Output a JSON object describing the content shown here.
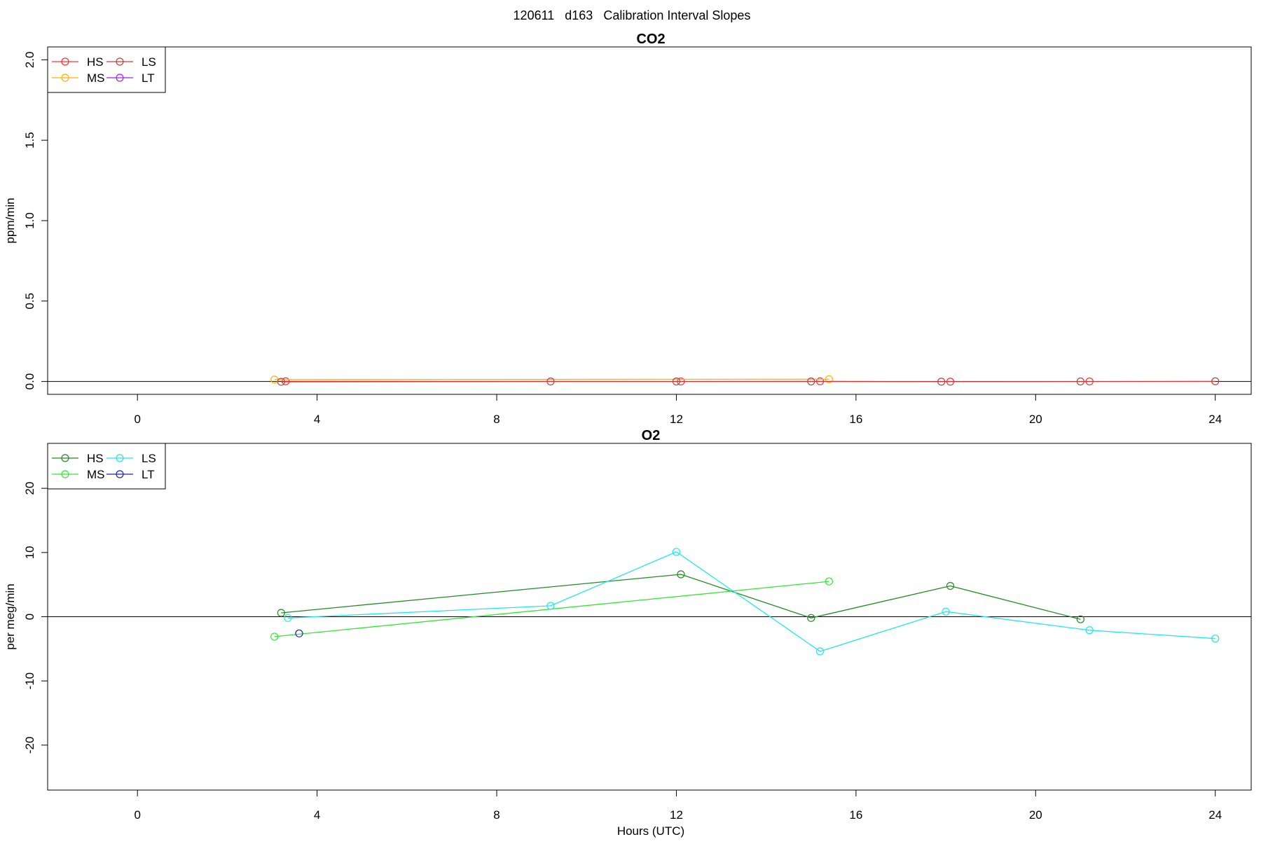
{
  "page_title": "120611   d163   Calibration Interval Slopes",
  "chart_data": [
    {
      "type": "line",
      "title": "CO2",
      "xlabel": "",
      "ylabel": "ppm/min",
      "xlim": [
        -2,
        24.8
      ],
      "ylim": [
        -0.08,
        2.08
      ],
      "x_ticks": [
        0,
        4,
        8,
        12,
        16,
        20,
        24
      ],
      "y_ticks": [
        0.0,
        0.5,
        1.0,
        1.5,
        2.0
      ],
      "x_tick_labels": [
        "0",
        "4",
        "8",
        "12",
        "16",
        "20",
        "24"
      ],
      "y_tick_labels": [
        "0.0",
        "0.5",
        "1.0",
        "1.5",
        "2.0"
      ],
      "zero_line": true,
      "grid": false,
      "legend_position": "top-left",
      "legend": [
        "HS",
        "MS",
        "LS",
        "LT"
      ],
      "series": [
        {
          "name": "HS",
          "color": "#ff3030",
          "x": [
            3.3,
            12.1,
            15.2,
            18.1,
            21.2
          ],
          "y": [
            0.001,
            0.0,
            0.001,
            -0.001,
            0.0
          ]
        },
        {
          "name": "MS",
          "color": "#ffb000",
          "x": [
            3.05,
            15.4
          ],
          "y": [
            0.012,
            0.014
          ]
        },
        {
          "name": "LS",
          "color": "#c04040",
          "x": [
            3.2,
            9.2,
            12.0,
            15.0,
            17.9,
            21.0,
            24.0
          ],
          "y": [
            -0.002,
            0.0,
            0.0,
            0.0,
            -0.001,
            0.0,
            0.001
          ]
        },
        {
          "name": "LT",
          "color": "#a020f0",
          "x": [],
          "y": []
        }
      ]
    },
    {
      "type": "line",
      "title": "O2",
      "xlabel": "Hours (UTC)",
      "ylabel": "per meg/min",
      "xlim": [
        -2,
        24.8
      ],
      "ylim": [
        -27,
        27
      ],
      "x_ticks": [
        0,
        4,
        8,
        12,
        16,
        20,
        24
      ],
      "y_ticks": [
        -20,
        -10,
        0,
        10,
        20
      ],
      "x_tick_labels": [
        "0",
        "4",
        "8",
        "12",
        "16",
        "20",
        "24"
      ],
      "y_tick_labels": [
        "-20",
        "-10",
        "0",
        "10",
        "20"
      ],
      "zero_line": true,
      "grid": false,
      "legend_position": "top-left",
      "legend": [
        "HS",
        "MS",
        "LS",
        "LT"
      ],
      "series": [
        {
          "name": "HS",
          "color": "#228b22",
          "x": [
            3.2,
            12.1,
            15.0,
            18.1,
            21.0
          ],
          "y": [
            0.6,
            6.6,
            -0.2,
            4.8,
            -0.4
          ]
        },
        {
          "name": "MS",
          "color": "#32e632",
          "x": [
            3.05,
            15.4
          ],
          "y": [
            -3.1,
            5.5
          ]
        },
        {
          "name": "LS",
          "color": "#20e8e8",
          "x": [
            3.35,
            9.2,
            12.0,
            15.2,
            18.0,
            21.2,
            24.0
          ],
          "y": [
            -0.2,
            1.7,
            10.1,
            -5.4,
            0.8,
            -2.1,
            -3.4
          ]
        },
        {
          "name": "LT",
          "color": "#2020c0",
          "x": [
            3.6
          ],
          "y": [
            -2.6
          ]
        }
      ]
    }
  ]
}
